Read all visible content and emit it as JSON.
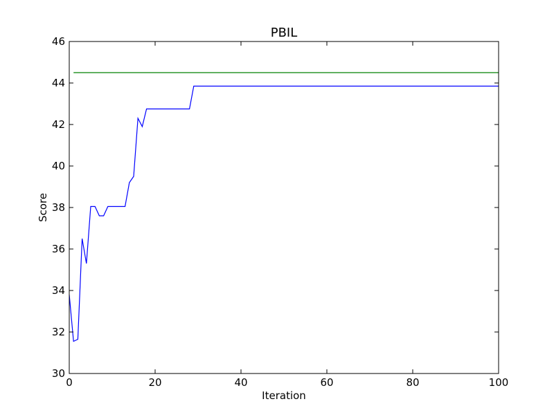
{
  "chart_data": {
    "type": "line",
    "title": "PBIL",
    "xlabel": "Iteration",
    "ylabel": "Score",
    "xlim": [
      0,
      100
    ],
    "ylim": [
      30,
      46
    ],
    "xticks": [
      0,
      20,
      40,
      60,
      80,
      100
    ],
    "yticks": [
      30,
      32,
      34,
      36,
      38,
      40,
      42,
      44,
      46
    ],
    "grid": false,
    "series": [
      {
        "color": "#0000ff",
        "points": [
          [
            0,
            33.8
          ],
          [
            1,
            31.55
          ],
          [
            2,
            31.65
          ],
          [
            3,
            36.5
          ],
          [
            4,
            35.3
          ],
          [
            5,
            38.05
          ],
          [
            6,
            38.05
          ],
          [
            7,
            37.6
          ],
          [
            8,
            37.6
          ],
          [
            9,
            38.05
          ],
          [
            13,
            38.05
          ],
          [
            14,
            39.2
          ],
          [
            15,
            39.5
          ],
          [
            16,
            42.3
          ],
          [
            17,
            41.9
          ],
          [
            18,
            42.75
          ],
          [
            28,
            42.75
          ],
          [
            29,
            43.85
          ],
          [
            100,
            43.85
          ]
        ]
      },
      {
        "color": "#008000",
        "points": [
          [
            1,
            44.5
          ],
          [
            100,
            44.5
          ]
        ]
      }
    ]
  }
}
